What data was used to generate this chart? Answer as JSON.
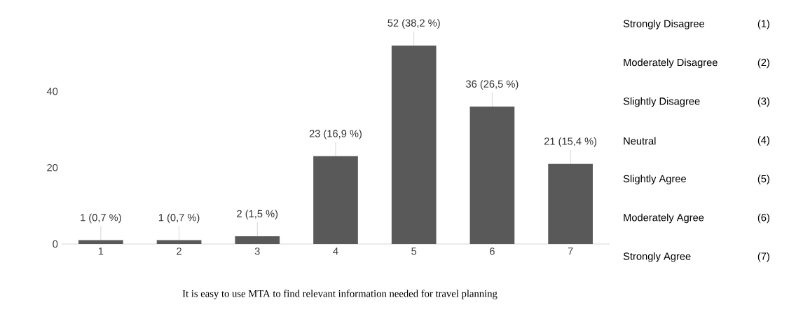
{
  "chart_data": {
    "type": "bar",
    "xlabel": "It is easy to use MTA to find relevant information needed for travel planning",
    "categories": [
      "1",
      "2",
      "3",
      "4",
      "5",
      "6",
      "7"
    ],
    "values": [
      1,
      1,
      2,
      23,
      52,
      36,
      21
    ],
    "value_labels": [
      "1 (0,7 %)",
      "1 (0,7 %)",
      "2 (1,5 %)",
      "23 (16,9 %)",
      "52 (38,2 %)",
      "36 (26,5 %)",
      "21 (15,4 %)"
    ],
    "color": "#595959",
    "ylim": [
      0,
      52
    ],
    "yticks": [
      0,
      20,
      40
    ],
    "grid": false,
    "annotations": [
      "Strongly Disagree",
      "(1)",
      "Moderately Disagree",
      "(2)",
      "Slightly Disagree",
      "(3)",
      "Neutral",
      "(4)",
      "Slightly Agree",
      "(5)",
      "Moderately Agree",
      "(6)",
      "Strongly Agree",
      "(7)"
    ]
  }
}
